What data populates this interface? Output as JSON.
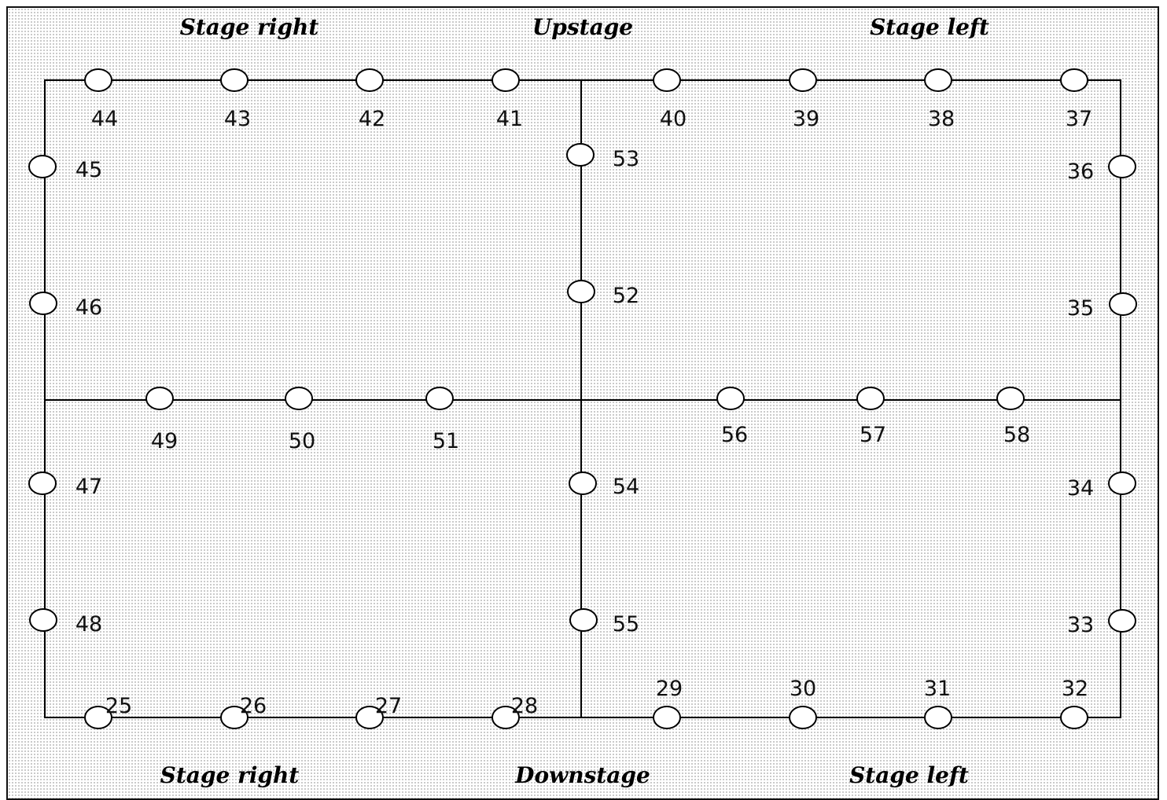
{
  "headings": {
    "top_left": "Stage right",
    "top_center": "Upstage",
    "top_right": "Stage left",
    "bottom_left": "Stage right",
    "bottom_center": "Downstage",
    "bottom_right": "Stage left"
  },
  "positions": [
    {
      "id": "p44",
      "label": "44"
    },
    {
      "id": "p43",
      "label": "43"
    },
    {
      "id": "p42",
      "label": "42"
    },
    {
      "id": "p41",
      "label": "41"
    },
    {
      "id": "p40",
      "label": "40"
    },
    {
      "id": "p39",
      "label": "39"
    },
    {
      "id": "p38",
      "label": "38"
    },
    {
      "id": "p37",
      "label": "37"
    },
    {
      "id": "p45",
      "label": "45"
    },
    {
      "id": "p46",
      "label": "46"
    },
    {
      "id": "p47",
      "label": "47"
    },
    {
      "id": "p48",
      "label": "48"
    },
    {
      "id": "p53",
      "label": "53"
    },
    {
      "id": "p52",
      "label": "52"
    },
    {
      "id": "p54",
      "label": "54"
    },
    {
      "id": "p55",
      "label": "55"
    },
    {
      "id": "p36",
      "label": "36"
    },
    {
      "id": "p35",
      "label": "35"
    },
    {
      "id": "p34",
      "label": "34"
    },
    {
      "id": "p33",
      "label": "33"
    },
    {
      "id": "p49",
      "label": "49"
    },
    {
      "id": "p50",
      "label": "50"
    },
    {
      "id": "p51",
      "label": "51"
    },
    {
      "id": "p56",
      "label": "56"
    },
    {
      "id": "p57",
      "label": "57"
    },
    {
      "id": "p58",
      "label": "58"
    },
    {
      "id": "p25",
      "label": "25"
    },
    {
      "id": "p26",
      "label": "26"
    },
    {
      "id": "p27",
      "label": "27"
    },
    {
      "id": "p28",
      "label": "28"
    },
    {
      "id": "p29",
      "label": "29"
    },
    {
      "id": "p30",
      "label": "30"
    },
    {
      "id": "p31",
      "label": "31"
    },
    {
      "id": "p32",
      "label": "32"
    }
  ]
}
